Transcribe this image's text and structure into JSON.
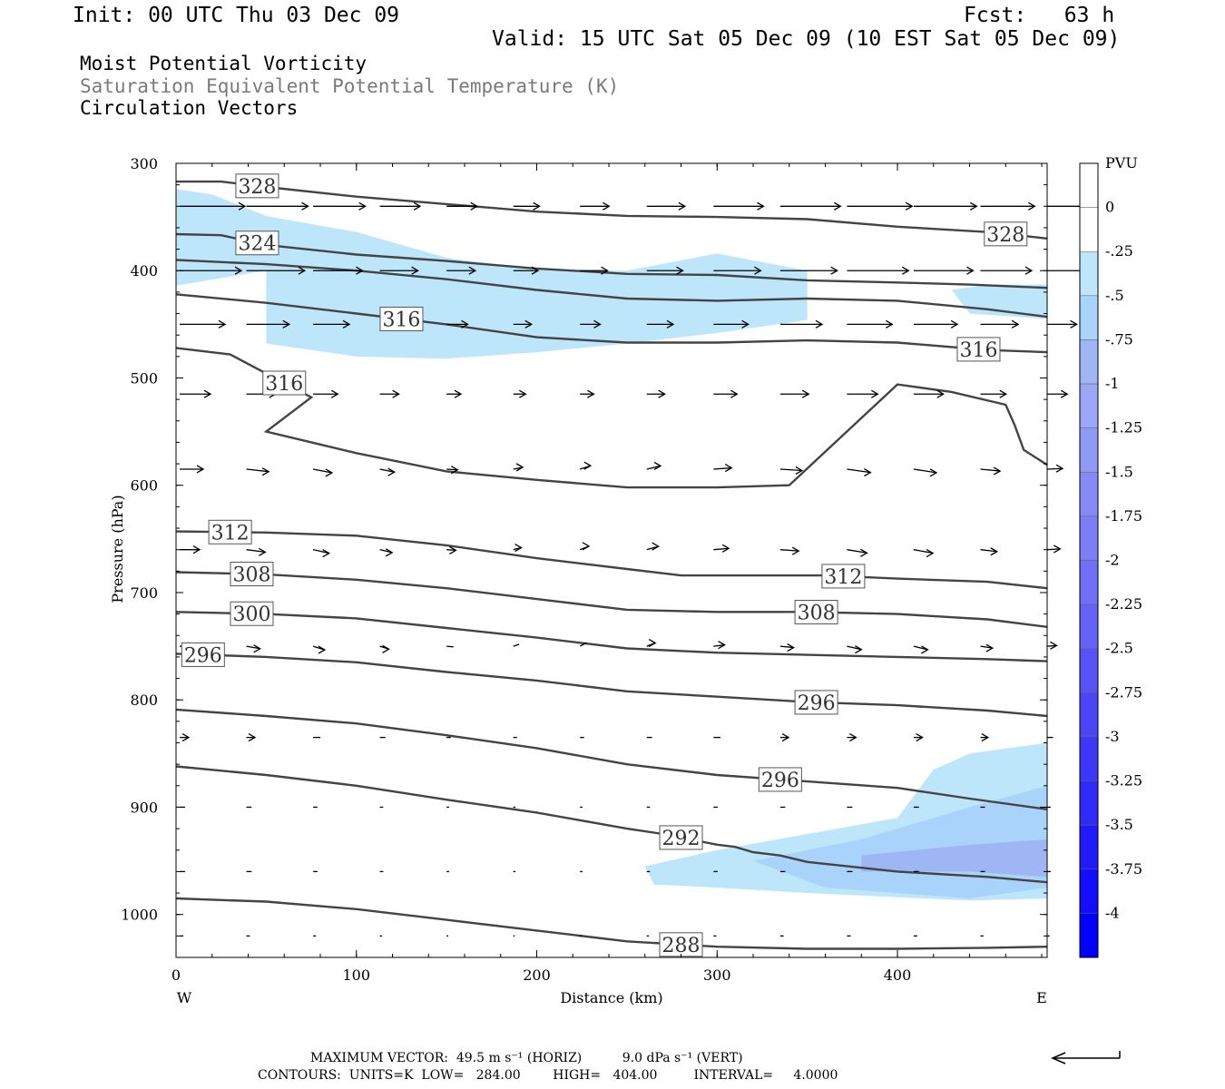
{
  "header": {
    "init": "Init: 00 UTC Thu 03 Dec 09",
    "fcst": "Fcst:   63 h",
    "valid": "Valid: 15 UTC Sat 05 Dec 09 (10 EST Sat 05 Dec 09)",
    "line1": "Moist Potential Vorticity",
    "line2": "Saturation Equivalent Potential Temperature (K)",
    "line3": "Circulation Vectors"
  },
  "colors": {
    "line": "#444444",
    "shade1": "#bde6fb",
    "shade2": "#a9d3fa",
    "shade3": "#9fb6f5",
    "accent": "#0000ff"
  },
  "chart_data": {
    "type": "cross-section",
    "xlabel": "Distance (km)",
    "ylabel": "Pressure (hPa)",
    "xlim": [
      0,
      483
    ],
    "ylim": [
      300,
      1040
    ],
    "y_inverted": true,
    "xticks": [
      0,
      100,
      200,
      300,
      400
    ],
    "yticks": [
      300,
      400,
      500,
      600,
      700,
      800,
      900,
      1000
    ],
    "x_end_labels": {
      "left": "W",
      "right": "E"
    },
    "colorbar": {
      "unit": "PVU",
      "levels": [
        "0",
        "-.25",
        "-.5",
        "-.75",
        "-1",
        "-1.25",
        "-1.5",
        "-1.75",
        "-2",
        "-2.25",
        "-2.5",
        "-2.75",
        "-3",
        "-3.25",
        "-3.5",
        "-3.75",
        "-4"
      ],
      "colors": [
        "#ffffff",
        "#ffffff",
        "#bde6fb",
        "#a9d3fa",
        "#9fb6f5",
        "#9aa8f7",
        "#8f9af7",
        "#848bf7",
        "#7a7ef7",
        "#6f70f7",
        "#6362f7",
        "#5654f7",
        "#4a46f7",
        "#3c37f8",
        "#2f29f9",
        "#211bfa",
        "#120dfb",
        "#0000ff"
      ]
    },
    "contour_series": [
      {
        "name": "328",
        "points": [
          [
            0,
            317
          ],
          [
            25,
            317
          ],
          [
            50,
            322
          ],
          [
            100,
            331
          ],
          [
            150,
            338
          ],
          [
            200,
            345
          ],
          [
            250,
            349
          ],
          [
            300,
            350
          ],
          [
            350,
            352
          ],
          [
            400,
            359
          ],
          [
            450,
            364
          ],
          [
            483,
            370
          ]
        ]
      },
      {
        "name": "324",
        "points": [
          [
            0,
            366
          ],
          [
            25,
            367
          ],
          [
            50,
            376
          ],
          [
            100,
            385
          ],
          [
            150,
            391
          ],
          [
            200,
            398
          ],
          [
            250,
            403
          ],
          [
            300,
            404
          ],
          [
            350,
            409
          ],
          [
            400,
            411
          ],
          [
            440,
            413
          ],
          [
            483,
            416
          ]
        ]
      },
      {
        "name": "",
        "points": [
          [
            0,
            390
          ],
          [
            50,
            394
          ],
          [
            100,
            400
          ],
          [
            150,
            408
          ],
          [
            200,
            418
          ],
          [
            250,
            426
          ],
          [
            300,
            428
          ],
          [
            350,
            426
          ],
          [
            400,
            428
          ],
          [
            450,
            436
          ],
          [
            483,
            443
          ]
        ]
      },
      {
        "name": "316",
        "points": [
          [
            0,
            422
          ],
          [
            50,
            430
          ],
          [
            100,
            440
          ],
          [
            150,
            450
          ],
          [
            200,
            462
          ],
          [
            250,
            467
          ],
          [
            300,
            467
          ],
          [
            350,
            465
          ],
          [
            400,
            467
          ],
          [
            450,
            474
          ],
          [
            483,
            476
          ]
        ]
      },
      {
        "name": "316",
        "points": [
          [
            0,
            472
          ],
          [
            30,
            478
          ],
          [
            75,
            518
          ],
          [
            50,
            550
          ],
          [
            100,
            570
          ],
          [
            150,
            587
          ],
          [
            200,
            595
          ],
          [
            250,
            602
          ],
          [
            300,
            602
          ],
          [
            340,
            600
          ],
          [
            400,
            506
          ],
          [
            430,
            513
          ],
          [
            460,
            525
          ],
          [
            465,
            544
          ],
          [
            470,
            567
          ],
          [
            483,
            581
          ]
        ]
      },
      {
        "name": "312",
        "points": [
          [
            0,
            643
          ],
          [
            50,
            644
          ],
          [
            100,
            647
          ],
          [
            150,
            656
          ],
          [
            200,
            668
          ],
          [
            250,
            678
          ],
          [
            280,
            684
          ],
          [
            310,
            684
          ],
          [
            360,
            684
          ],
          [
            400,
            687
          ],
          [
            450,
            690
          ],
          [
            483,
            696
          ]
        ]
      },
      {
        "name": "308",
        "points": [
          [
            0,
            681
          ],
          [
            50,
            683
          ],
          [
            100,
            688
          ],
          [
            150,
            696
          ],
          [
            200,
            706
          ],
          [
            250,
            716
          ],
          [
            300,
            718
          ],
          [
            350,
            718
          ],
          [
            400,
            720
          ],
          [
            450,
            725
          ],
          [
            483,
            732
          ]
        ]
      },
      {
        "name": "300",
        "points": [
          [
            0,
            718
          ],
          [
            50,
            720
          ],
          [
            100,
            724
          ],
          [
            150,
            733
          ],
          [
            200,
            742
          ],
          [
            250,
            752
          ],
          [
            300,
            756
          ],
          [
            350,
            758
          ],
          [
            400,
            760
          ],
          [
            450,
            762
          ],
          [
            483,
            764
          ]
        ]
      },
      {
        "name": "296",
        "points": [
          [
            0,
            757
          ],
          [
            50,
            760
          ],
          [
            100,
            765
          ],
          [
            150,
            774
          ],
          [
            200,
            782
          ],
          [
            250,
            792
          ],
          [
            300,
            797
          ],
          [
            350,
            802
          ],
          [
            400,
            805
          ],
          [
            450,
            810
          ],
          [
            483,
            815
          ]
        ]
      },
      {
        "name": "296",
        "points": [
          [
            0,
            809
          ],
          [
            50,
            815
          ],
          [
            100,
            822
          ],
          [
            150,
            833
          ],
          [
            200,
            845
          ],
          [
            250,
            860
          ],
          [
            300,
            870
          ],
          [
            350,
            876
          ],
          [
            400,
            882
          ],
          [
            440,
            892
          ],
          [
            483,
            902
          ]
        ]
      },
      {
        "name": "292",
        "points": [
          [
            0,
            862
          ],
          [
            50,
            870
          ],
          [
            100,
            880
          ],
          [
            150,
            893
          ],
          [
            200,
            905
          ],
          [
            250,
            920
          ],
          [
            270,
            925
          ],
          [
            300,
            935
          ],
          [
            310,
            937
          ],
          [
            320,
            942
          ],
          [
            335,
            945
          ],
          [
            350,
            951
          ],
          [
            400,
            960
          ],
          [
            450,
            965
          ],
          [
            483,
            970
          ]
        ]
      },
      {
        "name": "288",
        "points": [
          [
            0,
            985
          ],
          [
            50,
            988
          ],
          [
            100,
            995
          ],
          [
            150,
            1005
          ],
          [
            200,
            1015
          ],
          [
            250,
            1025
          ],
          [
            300,
            1030
          ],
          [
            350,
            1032
          ],
          [
            400,
            1032
          ],
          [
            450,
            1031
          ],
          [
            483,
            1030
          ]
        ]
      }
    ],
    "vectors_note": "Circulation vectors (flow from W to E)",
    "max_vector_horiz": "49.5 m s⁻¹ (HORIZ)",
    "max_vector_vert": "9.0 dPa s⁻¹ (VERT)",
    "contours_units": "K",
    "contours_low": "284.00",
    "contours_high": "404.00",
    "contours_interval": "4.0000"
  },
  "footer": {
    "max_vector": "MAXIMUM VECTOR:  49.5 m s⁻¹ (HORIZ)          9.0 dPa s⁻¹ (VERT)",
    "contours": "CONTOURS:  UNITS=K  LOW=   284.00        HIGH=   404.00         INTERVAL=     4.0000"
  }
}
